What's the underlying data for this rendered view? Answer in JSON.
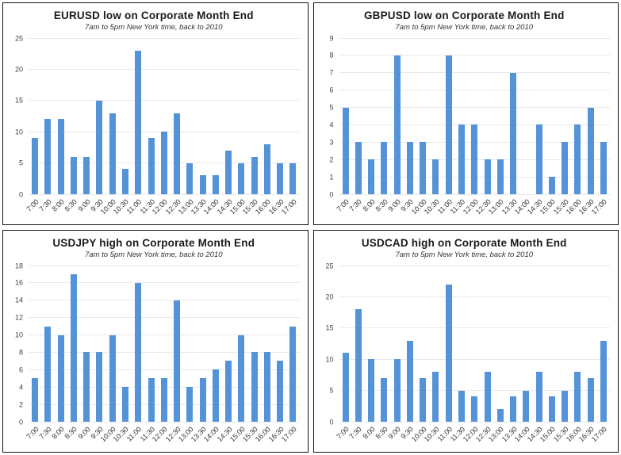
{
  "page": {
    "background": "#ffffff",
    "layout": "2x2-grid-of-charts"
  },
  "theme": {
    "bar_color": "#5493d7",
    "grid_color": "#e9e9e9",
    "panel_border_color": "#141414",
    "title_color": "#1a1a1a",
    "subtitle_color": "#333333",
    "tick_label_color": "#444444"
  },
  "chart_data": [
    {
      "id": "eurusd",
      "type": "bar",
      "title": "EURUSD low on Corporate Month End",
      "subtitle": "7am to 5pm New York time, back to 2010",
      "categories": [
        "7:00",
        "7:30",
        "8:00",
        "8:30",
        "9:00",
        "9:30",
        "10:00",
        "10:30",
        "11:00",
        "11:30",
        "12:00",
        "12:30",
        "13:00",
        "13:30",
        "14:00",
        "14:30",
        "15:00",
        "15:30",
        "16:00",
        "16:30",
        "17:00"
      ],
      "values": [
        9,
        12,
        12,
        6,
        6,
        15,
        13,
        4,
        23,
        9,
        10,
        13,
        5,
        3,
        3,
        7,
        5,
        6,
        8,
        5,
        5
      ],
      "xlabel": "",
      "ylabel": "",
      "ylim": [
        0,
        25
      ],
      "yticks": [
        0,
        5,
        10,
        15,
        20,
        25
      ],
      "bar_color": "#5493d7",
      "grid": true,
      "legend": "none"
    },
    {
      "id": "gbpusd",
      "type": "bar",
      "title": "GBPUSD low on Corporate Month End",
      "subtitle": "7am to 5pm New York time, back to 2010",
      "categories": [
        "7:00",
        "7:30",
        "8:00",
        "8:30",
        "9:00",
        "9:30",
        "10:00",
        "10:30",
        "11:00",
        "11:30",
        "12:00",
        "12:30",
        "13:00",
        "13:30",
        "14:00",
        "14:30",
        "15:00",
        "15:30",
        "16:00",
        "16:30",
        "17:00"
      ],
      "values": [
        5,
        3,
        2,
        3,
        8,
        3,
        3,
        2,
        8,
        4,
        4,
        2,
        2,
        7,
        0,
        4,
        1,
        3,
        4,
        5,
        3
      ],
      "xlabel": "",
      "ylabel": "",
      "ylim": [
        0,
        9
      ],
      "yticks": [
        0,
        1,
        2,
        3,
        4,
        5,
        6,
        7,
        8,
        9
      ],
      "bar_color": "#5493d7",
      "grid": true,
      "legend": "none"
    },
    {
      "id": "usdjpy",
      "type": "bar",
      "title": "USDJPY high on Corporate Month End",
      "subtitle": "7am to 5pm New York time, back to 2010",
      "categories": [
        "7:00",
        "7:30",
        "8:00",
        "8:30",
        "9:00",
        "9:30",
        "10:00",
        "10:30",
        "11:00",
        "11:30",
        "12:00",
        "12:30",
        "13:00",
        "13:30",
        "14:00",
        "14:30",
        "15:00",
        "15:30",
        "16:00",
        "16:30",
        "17:00"
      ],
      "values": [
        5,
        11,
        10,
        17,
        8,
        8,
        10,
        4,
        16,
        5,
        5,
        14,
        4,
        5,
        6,
        7,
        10,
        8,
        8,
        7,
        11
      ],
      "xlabel": "",
      "ylabel": "",
      "ylim": [
        0,
        18
      ],
      "yticks": [
        0,
        2,
        4,
        6,
        8,
        10,
        12,
        14,
        16,
        18
      ],
      "bar_color": "#5493d7",
      "grid": true,
      "legend": "none"
    },
    {
      "id": "usdcad",
      "type": "bar",
      "title": "USDCAD high on Corporate Month End",
      "subtitle": "7am to 5pm New York time, back to 2010",
      "categories": [
        "7:00",
        "7:30",
        "8:00",
        "8:30",
        "9:00",
        "9:30",
        "10:00",
        "10:30",
        "11:00",
        "11:30",
        "12:00",
        "12:30",
        "13:00",
        "13:30",
        "14:00",
        "14:30",
        "15:00",
        "15:30",
        "16:00",
        "16:30",
        "17:00"
      ],
      "values": [
        11,
        18,
        10,
        7,
        10,
        13,
        7,
        8,
        22,
        5,
        4,
        8,
        2,
        4,
        5,
        8,
        4,
        5,
        8,
        7,
        13
      ],
      "xlabel": "",
      "ylabel": "",
      "ylim": [
        0,
        25
      ],
      "yticks": [
        0,
        5,
        10,
        15,
        20,
        25
      ],
      "bar_color": "#5493d7",
      "grid": true,
      "legend": "none"
    }
  ]
}
